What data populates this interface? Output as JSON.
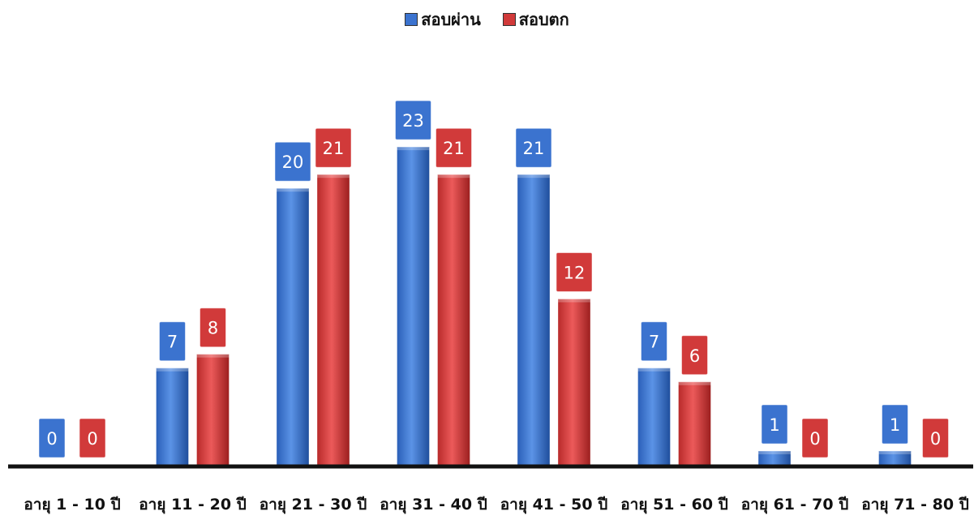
{
  "chart_data": {
    "type": "bar",
    "categories": [
      "อายุ 1 - 10  ปี",
      "อายุ 11 - 20 ปี",
      "อายุ 21 - 30 ปี",
      "อายุ 31 - 40 ปี",
      "อายุ 41 - 50 ปี",
      "อายุ 51 - 60 ปี",
      "อายุ 61 - 70 ปี",
      "อายุ 71 - 80 ปี"
    ],
    "series": [
      {
        "name": "สอบผ่าน",
        "color": "#3b73cf",
        "values": [
          0,
          7,
          20,
          23,
          21,
          7,
          1,
          1
        ]
      },
      {
        "name": "สอบตก",
        "color": "#d13a3a",
        "values": [
          0,
          8,
          21,
          21,
          12,
          6,
          0,
          0
        ]
      }
    ],
    "legend_position": "top-center",
    "grid": false,
    "ylim": [
      0,
      26
    ]
  }
}
